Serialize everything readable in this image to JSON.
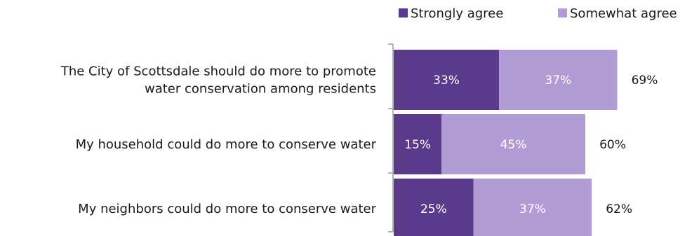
{
  "chart_data": {
    "type": "bar",
    "orientation": "horizontal",
    "stacked": true,
    "categories": [
      [
        "The City of Scottsdale should do more to promote",
        "water conservation among residents"
      ],
      [
        "My household could do more to conserve water"
      ],
      [
        "My neighbors could do more to conserve water"
      ]
    ],
    "series": [
      {
        "name": "Strongly agree",
        "color": "#5b3a8c",
        "values": [
          33,
          15,
          25
        ],
        "labels": [
          "33%",
          "15%",
          "25%"
        ]
      },
      {
        "name": "Somewhat agree",
        "color": "#b19cd6",
        "values": [
          37,
          45,
          37
        ],
        "labels": [
          "37%",
          "45%",
          "37%"
        ]
      }
    ],
    "totals": [
      69,
      60,
      62
    ],
    "total_labels": [
      "69%",
      "60%",
      "62%"
    ],
    "legend_position": "top-right",
    "grid": false
  }
}
